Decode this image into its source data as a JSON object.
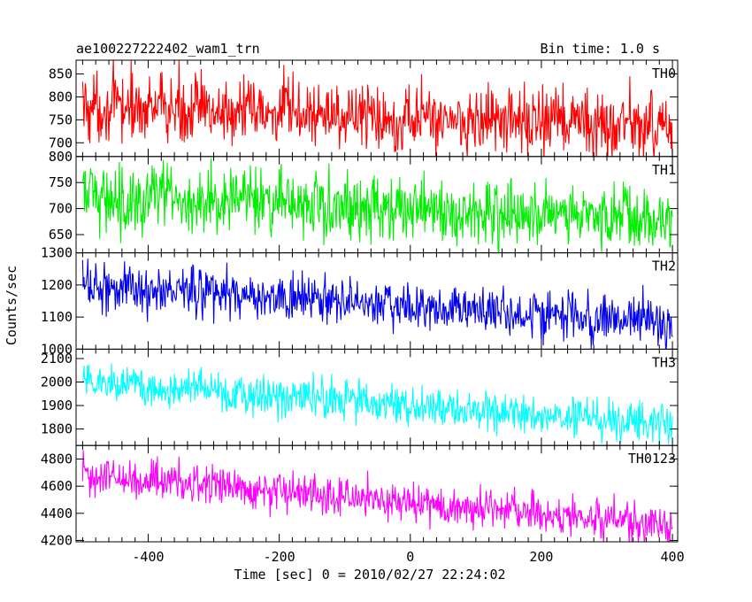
{
  "header": {
    "left": "ae100227222402_wam1_trn",
    "right": "Bin time: 1.0 s"
  },
  "chart_data": {
    "type": "line",
    "xlabel": "Time [sec] 0 = 2010/02/27 22:24:02",
    "ylabel": "Counts/sec",
    "xlim": [
      -510,
      408
    ],
    "x_ticks": [
      -400,
      -200,
      0,
      200,
      400
    ],
    "bin_time_s": 1.0,
    "x_start": -500,
    "x_end": 400,
    "panels": [
      {
        "name": "TH0",
        "color": "#ff0000",
        "ylim": [
          670,
          880
        ],
        "y_ticks": [
          700,
          750,
          800,
          850
        ],
        "trend": {
          "start": 780,
          "end": 735
        },
        "noise": 38
      },
      {
        "name": "TH1",
        "color": "#00ee00",
        "ylim": [
          615,
          800
        ],
        "y_ticks": [
          650,
          700,
          750,
          800
        ],
        "trend": {
          "start": 725,
          "end": 680
        },
        "noise": 32
      },
      {
        "name": "TH2",
        "color": "#0000ee",
        "ylim": [
          1000,
          1300
        ],
        "y_ticks": [
          1000,
          1100,
          1200,
          1300
        ],
        "trend": {
          "start": 1200,
          "end": 1080
        },
        "noise": 38
      },
      {
        "name": "TH3",
        "color": "#00ffff",
        "ylim": [
          1730,
          2140
        ],
        "y_ticks": [
          1800,
          1900,
          2000,
          2100
        ],
        "trend": {
          "start": 2005,
          "end": 1810
        },
        "noise": 42
      },
      {
        "name": "TH0123",
        "color": "#ff00ff",
        "ylim": [
          4190,
          4900
        ],
        "y_ticks": [
          4200,
          4400,
          4600,
          4800
        ],
        "trend": {
          "start": 4690,
          "end": 4310
        },
        "noise": 72
      }
    ]
  }
}
